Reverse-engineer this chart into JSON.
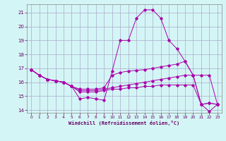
{
  "xlabel": "Windchill (Refroidissement éolien,°C)",
  "background_color": "#d4f5f5",
  "grid_color": "#aaaacc",
  "line_color": "#aa00aa",
  "xlim": [
    -0.5,
    23.5
  ],
  "ylim": [
    13.8,
    21.6
  ],
  "yticks": [
    14,
    15,
    16,
    17,
    18,
    19,
    20,
    21
  ],
  "xticks": [
    0,
    1,
    2,
    3,
    4,
    5,
    6,
    7,
    8,
    9,
    10,
    11,
    12,
    13,
    14,
    15,
    16,
    17,
    18,
    19,
    20,
    21,
    22,
    23
  ],
  "line1": [
    16.9,
    16.5,
    16.2,
    16.1,
    16.0,
    15.7,
    14.8,
    14.9,
    14.8,
    14.7,
    16.8,
    19.0,
    19.0,
    20.6,
    21.2,
    21.2,
    20.6,
    19.0,
    18.4,
    17.5,
    16.5,
    14.4,
    14.5,
    14.4
  ],
  "line2": [
    16.9,
    16.5,
    16.2,
    16.1,
    16.0,
    15.7,
    15.5,
    15.5,
    15.5,
    15.6,
    16.5,
    16.7,
    16.8,
    16.85,
    16.9,
    17.0,
    17.1,
    17.2,
    17.3,
    17.5,
    16.5,
    14.4,
    14.5,
    14.4
  ],
  "line3": [
    16.9,
    16.5,
    16.2,
    16.1,
    16.0,
    15.7,
    15.4,
    15.4,
    15.4,
    15.5,
    15.6,
    15.7,
    15.8,
    15.9,
    16.0,
    16.1,
    16.2,
    16.3,
    16.4,
    16.5,
    16.5,
    16.5,
    16.5,
    14.4
  ],
  "line4": [
    16.9,
    16.5,
    16.2,
    16.1,
    16.0,
    15.7,
    15.3,
    15.3,
    15.3,
    15.4,
    15.5,
    15.5,
    15.6,
    15.6,
    15.7,
    15.7,
    15.8,
    15.8,
    15.8,
    15.8,
    15.8,
    14.4,
    13.9,
    14.4
  ]
}
